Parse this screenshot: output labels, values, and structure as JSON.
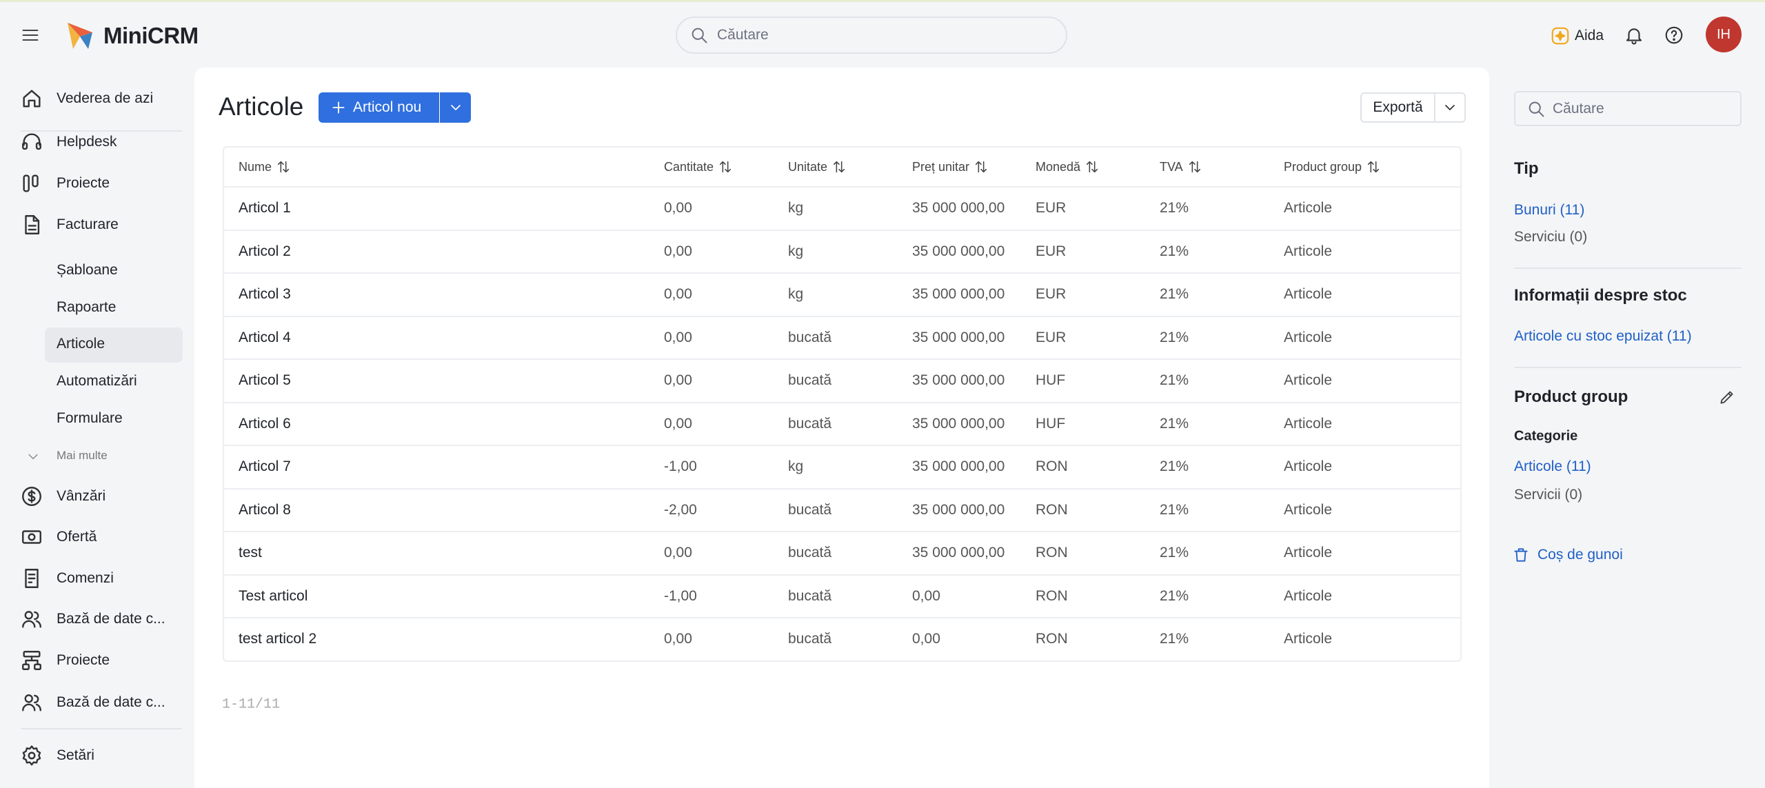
{
  "header": {
    "logo": "MiniCRM",
    "search_placeholder": "Căutare",
    "assistant": "Aida",
    "avatar": "IH"
  },
  "sidebar": {
    "top": [
      "Vederea de azi",
      "Helpdesk",
      "Proiecte",
      "Facturare"
    ],
    "sub": [
      "Șabloane",
      "Rapoarte",
      "Articole",
      "Automatizări",
      "Formulare"
    ],
    "more": "Mai multe",
    "bottom": [
      "Vânzări",
      "Ofertă",
      "Comenzi",
      "Bază de date c...",
      "Proiecte",
      "Bază de date c..."
    ],
    "settings": "Setări"
  },
  "main": {
    "title": "Articole",
    "new_button": "Articol nou",
    "export_button": "Exportă",
    "table": {
      "columns": [
        "Nume",
        "Cantitate",
        "Unitate",
        "Preț unitar",
        "Monedă",
        "TVA",
        "Product group"
      ],
      "rows": [
        [
          "Articol 1",
          "0,00",
          "kg",
          "35 000 000,00",
          "EUR",
          "21%",
          "Articole"
        ],
        [
          "Articol 2",
          "0,00",
          "kg",
          "35 000 000,00",
          "EUR",
          "21%",
          "Articole"
        ],
        [
          "Articol 3",
          "0,00",
          "kg",
          "35 000 000,00",
          "EUR",
          "21%",
          "Articole"
        ],
        [
          "Articol 4",
          "0,00",
          "bucată",
          "35 000 000,00",
          "EUR",
          "21%",
          "Articole"
        ],
        [
          "Articol 5",
          "0,00",
          "bucată",
          "35 000 000,00",
          "HUF",
          "21%",
          "Articole"
        ],
        [
          "Articol 6",
          "0,00",
          "bucată",
          "35 000 000,00",
          "HUF",
          "21%",
          "Articole"
        ],
        [
          "Articol 7",
          "-1,00",
          "kg",
          "35 000 000,00",
          "RON",
          "21%",
          "Articole"
        ],
        [
          "Articol 8",
          "-2,00",
          "bucată",
          "35 000 000,00",
          "RON",
          "21%",
          "Articole"
        ],
        [
          "test",
          "0,00",
          "bucată",
          "35 000 000,00",
          "RON",
          "21%",
          "Articole"
        ],
        [
          "Test articol",
          "-1,00",
          "bucată",
          "0,00",
          "RON",
          "21%",
          "Articole"
        ],
        [
          "test articol 2",
          "0,00",
          "bucată",
          "0,00",
          "RON",
          "21%",
          "Articole"
        ]
      ]
    },
    "pagination": "1-11/11"
  },
  "filters": {
    "search_placeholder": "Căutare",
    "type_title": "Tip",
    "type_options": [
      "Bunuri (11)",
      "Serviciu (0)"
    ],
    "stock_title": "Informații despre stoc",
    "stock_option": "Articole cu stoc epuizat (11)",
    "group_title": "Product group",
    "category_title": "Categorie",
    "category_options": [
      "Articole (11)",
      "Servicii (0)"
    ],
    "trash": "Coș de gunoi"
  }
}
